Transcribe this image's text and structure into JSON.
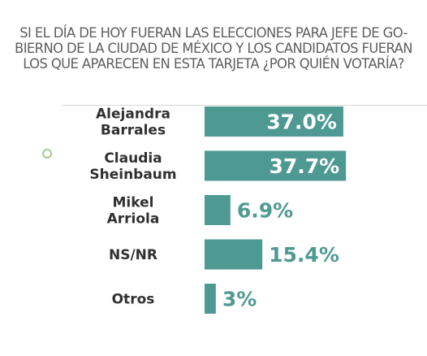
{
  "chart_data": {
    "type": "bar",
    "orientation": "horizontal",
    "title_lines": [
      "SI EL DÍA DE HOY FUERAN LAS ELECCIONES PARA JEFE DE GO-",
      "BIERNO DE LA CIUDAD DE MÉXICO Y LOS CANDIDATOS FUERAN",
      "LOS QUE APARECEN EN ESTA TARJETA ¿POR QUIÉN VOTARÍA?"
    ],
    "categories": [
      [
        "Alejandra",
        "Barrales"
      ],
      [
        "Claudia",
        "Sheinbaum"
      ],
      [
        "Mikel",
        "Arriola"
      ],
      [
        "NS/NR"
      ],
      [
        "Otros"
      ]
    ],
    "values": [
      37.0,
      37.7,
      6.9,
      15.4,
      3
    ],
    "value_labels": [
      "37.0%",
      "37.7%",
      "6.9%",
      "15.4%",
      "3%"
    ],
    "bar_color": "#4e9a93",
    "xlim": [
      0,
      40
    ],
    "grid": false,
    "legend": "none"
  }
}
